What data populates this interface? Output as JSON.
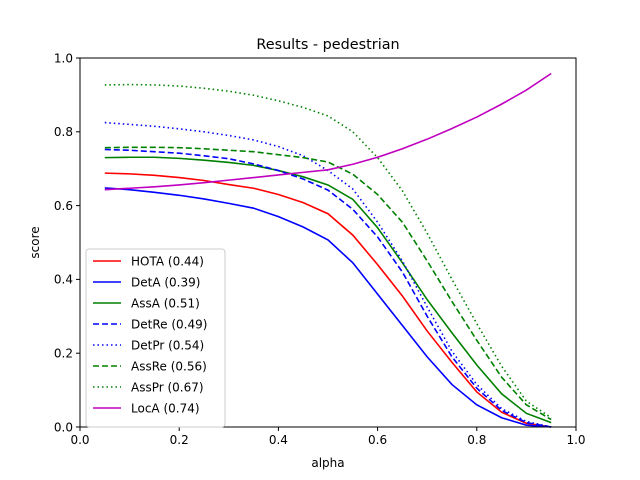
{
  "chart_data": {
    "type": "line",
    "title": "Results - pedestrian",
    "xlabel": "alpha",
    "ylabel": "score",
    "xlim": [
      0.0,
      1.0
    ],
    "ylim": [
      0.0,
      1.0
    ],
    "x_ticks": [
      "0.0",
      "0.2",
      "0.4",
      "0.6",
      "0.8",
      "1.0"
    ],
    "y_ticks": [
      "0.0",
      "0.2",
      "0.4",
      "0.6",
      "0.8",
      "1.0"
    ],
    "grid": false,
    "legend_position": "lower-left",
    "x": [
      0.05,
      0.1,
      0.15,
      0.2,
      0.25,
      0.3,
      0.35,
      0.4,
      0.45,
      0.5,
      0.55,
      0.6,
      0.65,
      0.7,
      0.75,
      0.8,
      0.85,
      0.9,
      0.95
    ],
    "series": [
      {
        "name": "HOTA (0.44)",
        "color": "#ff0000",
        "dash": "solid",
        "values": [
          0.688,
          0.686,
          0.682,
          0.676,
          0.668,
          0.657,
          0.647,
          0.63,
          0.608,
          0.578,
          0.52,
          0.44,
          0.355,
          0.26,
          0.175,
          0.095,
          0.04,
          0.01,
          0.0
        ]
      },
      {
        "name": "DetA (0.39)",
        "color": "#0000ff",
        "dash": "solid",
        "values": [
          0.648,
          0.643,
          0.636,
          0.628,
          0.618,
          0.606,
          0.593,
          0.57,
          0.542,
          0.507,
          0.445,
          0.36,
          0.275,
          0.19,
          0.115,
          0.06,
          0.025,
          0.005,
          0.0
        ]
      },
      {
        "name": "AssA (0.51)",
        "color": "#008000",
        "dash": "solid",
        "values": [
          0.73,
          0.731,
          0.731,
          0.728,
          0.723,
          0.717,
          0.709,
          0.695,
          0.678,
          0.656,
          0.617,
          0.54,
          0.445,
          0.345,
          0.255,
          0.168,
          0.09,
          0.037,
          0.012
        ]
      },
      {
        "name": "DetRe (0.49)",
        "color": "#0000ff",
        "dash": "dashed",
        "values": [
          0.752,
          0.75,
          0.746,
          0.742,
          0.735,
          0.727,
          0.713,
          0.695,
          0.672,
          0.642,
          0.59,
          0.515,
          0.42,
          0.3,
          0.19,
          0.105,
          0.045,
          0.012,
          0.0
        ]
      },
      {
        "name": "DetPr (0.54)",
        "color": "#0000ff",
        "dash": "dotted",
        "values": [
          0.825,
          0.82,
          0.815,
          0.808,
          0.8,
          0.79,
          0.778,
          0.76,
          0.735,
          0.695,
          0.645,
          0.555,
          0.45,
          0.325,
          0.205,
          0.115,
          0.05,
          0.015,
          0.0
        ]
      },
      {
        "name": "AssRe (0.56)",
        "color": "#008000",
        "dash": "dashed",
        "values": [
          0.757,
          0.758,
          0.758,
          0.757,
          0.754,
          0.75,
          0.746,
          0.738,
          0.73,
          0.718,
          0.685,
          0.63,
          0.555,
          0.45,
          0.34,
          0.235,
          0.135,
          0.06,
          0.02
        ]
      },
      {
        "name": "AssPr (0.67)",
        "color": "#008000",
        "dash": "dotted",
        "values": [
          0.927,
          0.928,
          0.927,
          0.924,
          0.918,
          0.91,
          0.899,
          0.884,
          0.866,
          0.843,
          0.8,
          0.73,
          0.64,
          0.525,
          0.4,
          0.28,
          0.165,
          0.07,
          0.025
        ]
      },
      {
        "name": "LocA (0.74)",
        "color": "#bf00bf",
        "dash": "solid",
        "values": [
          0.643,
          0.647,
          0.651,
          0.656,
          0.662,
          0.669,
          0.676,
          0.683,
          0.69,
          0.697,
          0.712,
          0.731,
          0.754,
          0.78,
          0.809,
          0.84,
          0.875,
          0.913,
          0.958
        ]
      }
    ]
  }
}
